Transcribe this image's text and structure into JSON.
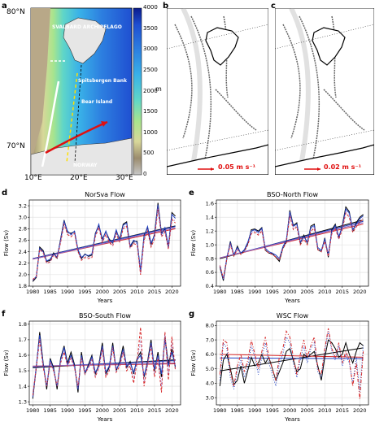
{
  "panels": {
    "a": "a",
    "b": "b",
    "c": "c",
    "d": "d",
    "e": "e",
    "f": "f",
    "g": "g"
  },
  "map": {
    "lat_labels": [
      "80°N",
      "70°N"
    ],
    "lon_labels": [
      "10°E",
      "20°E",
      "30°E"
    ],
    "places": [
      "SVALBARD ARCHIPELAGO",
      "Spitsbergen Bank",
      "Bear Island",
      "NORWAY"
    ],
    "colorbar": {
      "ticks": [
        "4000",
        "3500",
        "3000",
        "2500",
        "2000",
        "1500",
        "1000",
        "500",
        "0"
      ],
      "unit": "m",
      "colors": [
        "#0b1c8c",
        "#1f4fd1",
        "#2d7fe0",
        "#39b1e8",
        "#5fd6c8",
        "#a9e48d",
        "#d8d79a",
        "#c9b98c",
        "#9b8c6e",
        "#c8c8c8"
      ]
    },
    "scale_b": "0.05 m s⁻¹",
    "scale_c": "0.02 m s⁻¹"
  },
  "chart_data": [
    {
      "type": "line",
      "title": "NorSva Flow",
      "xlabel": "Years",
      "ylabel": "Flow (Sv)",
      "xlim": [
        1979,
        2022.5
      ],
      "ylim": [
        1.8,
        3.3
      ],
      "xticks": [
        1980,
        1985,
        1990,
        1995,
        2000,
        2005,
        2010,
        2015,
        2020
      ],
      "yticks": [
        1.8,
        2.0,
        2.2,
        2.4,
        2.6,
        2.8,
        3.0,
        3.2
      ],
      "x": [
        1980,
        1981,
        1982,
        1983,
        1984,
        1985,
        1986,
        1987,
        1988,
        1989,
        1990,
        1991,
        1992,
        1993,
        1994,
        1995,
        1996,
        1997,
        1998,
        1999,
        2000,
        2001,
        2002,
        2003,
        2004,
        2005,
        2006,
        2007,
        2008,
        2009,
        2010,
        2011,
        2012,
        2013,
        2014,
        2015,
        2016,
        2017,
        2018,
        2019,
        2020,
        2021
      ],
      "series": [
        {
          "color": "#000000",
          "dash": "",
          "values": [
            1.88,
            1.95,
            2.48,
            2.42,
            2.23,
            2.25,
            2.38,
            2.29,
            2.62,
            2.95,
            2.74,
            2.72,
            2.75,
            2.42,
            2.28,
            2.36,
            2.32,
            2.34,
            2.72,
            2.86,
            2.62,
            2.75,
            2.62,
            2.55,
            2.76,
            2.62,
            2.88,
            2.92,
            2.48,
            2.58,
            2.58,
            2.05,
            2.68,
            2.82,
            2.52,
            2.7,
            3.25,
            2.72,
            2.8,
            2.48,
            3.08,
            3.02
          ]
        },
        {
          "color": "#1f3fbf",
          "dash": "",
          "values": [
            1.9,
            1.97,
            2.46,
            2.4,
            2.24,
            2.27,
            2.36,
            2.31,
            2.6,
            2.93,
            2.76,
            2.7,
            2.76,
            2.44,
            2.3,
            2.35,
            2.33,
            2.36,
            2.7,
            2.88,
            2.6,
            2.76,
            2.6,
            2.56,
            2.78,
            2.6,
            2.86,
            2.9,
            2.5,
            2.6,
            2.56,
            2.08,
            2.66,
            2.84,
            2.55,
            2.68,
            3.22,
            2.7,
            2.82,
            2.5,
            3.05,
            2.98
          ]
        },
        {
          "color": "#d62728",
          "dash": "3,2",
          "values": [
            1.92,
            1.96,
            2.44,
            2.38,
            2.2,
            2.22,
            2.34,
            2.28,
            2.56,
            2.88,
            2.7,
            2.66,
            2.72,
            2.4,
            2.25,
            2.3,
            2.28,
            2.3,
            2.66,
            2.82,
            2.56,
            2.7,
            2.56,
            2.5,
            2.72,
            2.56,
            2.8,
            2.84,
            2.46,
            2.54,
            2.52,
            2.0,
            2.6,
            2.76,
            2.48,
            2.62,
            3.15,
            2.66,
            2.74,
            2.44,
            2.96,
            2.9
          ]
        },
        {
          "color": "#9467bd",
          "dash": "1,2",
          "values": [
            1.9,
            1.96,
            2.45,
            2.39,
            2.21,
            2.23,
            2.35,
            2.29,
            2.58,
            2.9,
            2.72,
            2.68,
            2.73,
            2.41,
            2.26,
            2.32,
            2.3,
            2.32,
            2.68,
            2.84,
            2.58,
            2.72,
            2.58,
            2.52,
            2.74,
            2.58,
            2.82,
            2.86,
            2.47,
            2.56,
            2.54,
            2.02,
            2.62,
            2.78,
            2.5,
            2.65,
            3.18,
            2.68,
            2.76,
            2.46,
            2.98,
            2.93
          ]
        }
      ],
      "trends": [
        {
          "color": "#000000",
          "start": 2.28,
          "end": 2.85
        },
        {
          "color": "#1f3fbf",
          "start": 2.28,
          "end": 2.84
        },
        {
          "color": "#d62728",
          "start": 2.27,
          "end": 2.8
        },
        {
          "color": "#9467bd",
          "start": 2.27,
          "end": 2.82
        }
      ]
    },
    {
      "type": "line",
      "title": "BSO-North Flow",
      "xlabel": "Years",
      "ylabel": "Flow (Sv)",
      "xlim": [
        1979,
        2022.5
      ],
      "ylim": [
        0.4,
        1.65
      ],
      "xticks": [
        1980,
        1985,
        1990,
        1995,
        2000,
        2005,
        2010,
        2015,
        2020
      ],
      "yticks": [
        0.4,
        0.6,
        0.8,
        1.0,
        1.2,
        1.4,
        1.6
      ],
      "x": [
        1980,
        1981,
        1982,
        1983,
        1984,
        1985,
        1986,
        1987,
        1988,
        1989,
        1990,
        1991,
        1992,
        1993,
        1994,
        1995,
        1996,
        1997,
        1998,
        1999,
        2000,
        2001,
        2002,
        2003,
        2004,
        2005,
        2006,
        2007,
        2008,
        2009,
        2010,
        2011,
        2012,
        2013,
        2014,
        2015,
        2016,
        2017,
        2018,
        2019,
        2020,
        2021
      ],
      "series": [
        {
          "color": "#000000",
          "dash": "",
          "values": [
            0.68,
            0.48,
            0.8,
            1.05,
            0.84,
            0.98,
            0.87,
            0.92,
            1.02,
            1.22,
            1.23,
            1.2,
            1.25,
            0.92,
            0.88,
            0.87,
            0.82,
            0.76,
            0.95,
            1.05,
            1.5,
            1.28,
            1.32,
            1.02,
            1.14,
            1.02,
            1.27,
            1.3,
            0.93,
            0.9,
            1.1,
            0.82,
            1.22,
            1.3,
            1.1,
            1.28,
            1.55,
            1.48,
            1.2,
            1.32,
            1.4,
            1.44
          ]
        },
        {
          "color": "#1f3fbf",
          "dash": "",
          "values": [
            0.7,
            0.5,
            0.82,
            1.03,
            0.86,
            0.96,
            0.88,
            0.93,
            1.04,
            1.2,
            1.22,
            1.18,
            1.24,
            0.95,
            0.9,
            0.88,
            0.85,
            0.8,
            0.97,
            1.07,
            1.48,
            1.27,
            1.3,
            1.04,
            1.12,
            1.04,
            1.25,
            1.28,
            0.96,
            0.92,
            1.08,
            0.86,
            1.2,
            1.28,
            1.12,
            1.26,
            1.52,
            1.46,
            1.22,
            1.3,
            1.38,
            1.42
          ]
        },
        {
          "color": "#d62728",
          "dash": "3,2",
          "values": [
            0.7,
            0.52,
            0.8,
            1.0,
            0.84,
            0.93,
            0.86,
            0.9,
            1.0,
            1.16,
            1.18,
            1.14,
            1.2,
            0.92,
            0.88,
            0.86,
            0.82,
            0.78,
            0.94,
            1.03,
            1.42,
            1.22,
            1.26,
            1.0,
            1.08,
            1.0,
            1.2,
            1.24,
            0.93,
            0.9,
            1.05,
            0.83,
            1.16,
            1.24,
            1.08,
            1.22,
            1.46,
            1.4,
            1.18,
            1.26,
            1.33,
            1.37
          ]
        },
        {
          "color": "#9467bd",
          "dash": "1,2",
          "values": [
            0.69,
            0.51,
            0.81,
            1.01,
            0.85,
            0.94,
            0.87,
            0.91,
            1.01,
            1.18,
            1.2,
            1.16,
            1.22,
            0.93,
            0.89,
            0.87,
            0.83,
            0.79,
            0.95,
            1.05,
            1.45,
            1.24,
            1.28,
            1.02,
            1.1,
            1.02,
            1.22,
            1.26,
            0.94,
            0.91,
            1.06,
            0.84,
            1.18,
            1.26,
            1.1,
            1.24,
            1.49,
            1.43,
            1.2,
            1.28,
            1.35,
            1.39
          ]
        }
      ],
      "trends": [
        {
          "color": "#000000",
          "start": 0.8,
          "end": 1.36
        },
        {
          "color": "#1f3fbf",
          "start": 0.81,
          "end": 1.34
        },
        {
          "color": "#d62728",
          "start": 0.81,
          "end": 1.3
        },
        {
          "color": "#9467bd",
          "start": 0.81,
          "end": 1.32
        }
      ]
    },
    {
      "type": "line",
      "title": "BSO-South Flow",
      "xlabel": "Years",
      "ylabel": "Flow (Sv)",
      "xlim": [
        1979,
        2022.5
      ],
      "ylim": [
        1.28,
        1.82
      ],
      "xticks": [
        1980,
        1985,
        1990,
        1995,
        2000,
        2005,
        2010,
        2015,
        2020
      ],
      "yticks": [
        1.3,
        1.4,
        1.5,
        1.6,
        1.7,
        1.8
      ],
      "x": [
        1980,
        1981,
        1982,
        1983,
        1984,
        1985,
        1986,
        1987,
        1988,
        1989,
        1990,
        1991,
        1992,
        1993,
        1994,
        1995,
        1996,
        1997,
        1998,
        1999,
        2000,
        2001,
        2002,
        2003,
        2004,
        2005,
        2006,
        2007,
        2008,
        2009,
        2010,
        2011,
        2012,
        2013,
        2014,
        2015,
        2016,
        2017,
        2018,
        2019,
        2020,
        2021
      ],
      "series": [
        {
          "color": "#000000",
          "dash": "",
          "values": [
            1.32,
            1.52,
            1.75,
            1.55,
            1.38,
            1.58,
            1.52,
            1.38,
            1.58,
            1.66,
            1.55,
            1.62,
            1.54,
            1.36,
            1.62,
            1.48,
            1.54,
            1.6,
            1.48,
            1.54,
            1.68,
            1.48,
            1.52,
            1.68,
            1.5,
            1.56,
            1.66,
            1.52,
            1.56,
            1.48,
            1.58,
            1.62,
            1.46,
            1.56,
            1.7,
            1.5,
            1.62,
            1.46,
            1.72,
            1.54,
            1.64,
            1.52
          ]
        },
        {
          "color": "#1f3fbf",
          "dash": "",
          "values": [
            1.33,
            1.53,
            1.73,
            1.54,
            1.4,
            1.57,
            1.51,
            1.4,
            1.57,
            1.65,
            1.54,
            1.6,
            1.53,
            1.38,
            1.6,
            1.49,
            1.53,
            1.59,
            1.49,
            1.53,
            1.66,
            1.49,
            1.53,
            1.66,
            1.51,
            1.55,
            1.64,
            1.53,
            1.55,
            1.49,
            1.57,
            1.6,
            1.47,
            1.55,
            1.68,
            1.51,
            1.6,
            1.48,
            1.7,
            1.53,
            1.62,
            1.53
          ]
        },
        {
          "color": "#d62728",
          "dash": "3,2",
          "values": [
            1.34,
            1.52,
            1.7,
            1.52,
            1.4,
            1.55,
            1.5,
            1.4,
            1.55,
            1.62,
            1.53,
            1.58,
            1.52,
            1.4,
            1.58,
            1.48,
            1.52,
            1.57,
            1.46,
            1.52,
            1.64,
            1.46,
            1.5,
            1.65,
            1.49,
            1.53,
            1.62,
            1.5,
            1.53,
            1.42,
            1.56,
            1.78,
            1.4,
            1.54,
            1.66,
            1.46,
            1.58,
            1.36,
            1.75,
            1.44,
            1.72,
            1.5
          ]
        },
        {
          "color": "#9467bd",
          "dash": "1,2",
          "values": [
            1.34,
            1.52,
            1.71,
            1.53,
            1.4,
            1.56,
            1.5,
            1.4,
            1.56,
            1.63,
            1.53,
            1.59,
            1.52,
            1.39,
            1.59,
            1.48,
            1.52,
            1.58,
            1.47,
            1.52,
            1.65,
            1.47,
            1.51,
            1.65,
            1.5,
            1.54,
            1.63,
            1.51,
            1.54,
            1.45,
            1.56,
            1.7,
            1.43,
            1.54,
            1.67,
            1.48,
            1.59,
            1.4,
            1.73,
            1.48,
            1.68,
            1.51
          ]
        }
      ],
      "trends": [
        {
          "color": "#000000",
          "start": 1.52,
          "end": 1.57
        },
        {
          "color": "#1f3fbf",
          "start": 1.525,
          "end": 1.565
        },
        {
          "color": "#d62728",
          "start": 1.53,
          "end": 1.545
        },
        {
          "color": "#9467bd",
          "start": 1.53,
          "end": 1.55
        }
      ]
    },
    {
      "type": "line",
      "title": "WSC Flow",
      "xlabel": "Years",
      "ylabel": "Flow (Sv)",
      "xlim": [
        1979,
        2022.5
      ],
      "ylim": [
        2.5,
        8.3
      ],
      "xticks": [
        1980,
        1985,
        1990,
        1995,
        2000,
        2005,
        2010,
        2015,
        2020
      ],
      "yticks": [
        3.0,
        4.0,
        5.0,
        6.0,
        7.0,
        8.0
      ],
      "x": [
        1980,
        1981,
        1982,
        1983,
        1984,
        1985,
        1986,
        1987,
        1988,
        1989,
        1990,
        1991,
        1992,
        1993,
        1994,
        1995,
        1996,
        1997,
        1998,
        1999,
        2000,
        2001,
        2002,
        2003,
        2004,
        2005,
        2006,
        2007,
        2008,
        2009,
        2010,
        2011,
        2012,
        2013,
        2014,
        2015,
        2016,
        2017,
        2018,
        2019,
        2020,
        2021
      ],
      "series": [
        {
          "color": "#000000",
          "dash": "",
          "values": [
            3.8,
            5.6,
            6.0,
            5.0,
            3.9,
            4.2,
            5.2,
            4.0,
            4.9,
            5.8,
            5.2,
            5.4,
            6.0,
            5.4,
            5.8,
            5.0,
            4.2,
            4.8,
            5.4,
            6.2,
            6.4,
            5.6,
            4.8,
            5.0,
            6.0,
            5.8,
            6.0,
            6.2,
            5.2,
            4.2,
            5.8,
            7.0,
            6.8,
            6.4,
            5.8,
            6.0,
            6.8,
            6.0,
            5.4,
            6.2,
            6.8,
            6.6
          ]
        },
        {
          "color": "#1f3fbf",
          "dash": "1,2",
          "values": [
            4.2,
            6.8,
            6.4,
            4.4,
            3.6,
            4.8,
            5.6,
            4.4,
            5.2,
            6.6,
            5.8,
            4.6,
            5.8,
            6.8,
            5.4,
            4.6,
            3.8,
            5.4,
            6.0,
            7.2,
            6.8,
            5.4,
            4.4,
            5.6,
            6.6,
            5.4,
            6.4,
            6.8,
            4.8,
            4.4,
            6.2,
            7.6,
            6.2,
            5.6,
            6.6,
            5.2,
            6.0,
            5.4,
            4.0,
            5.8,
            3.4,
            6.6
          ]
        },
        {
          "color": "#d62728",
          "dash": "4,2,1,2",
          "values": [
            4.6,
            7.0,
            6.8,
            4.8,
            3.8,
            5.2,
            6.0,
            4.8,
            5.6,
            7.0,
            6.0,
            5.0,
            6.2,
            7.2,
            5.8,
            5.0,
            4.2,
            5.8,
            6.4,
            7.6,
            7.2,
            5.8,
            4.6,
            6.0,
            7.0,
            5.8,
            6.6,
            7.2,
            5.0,
            4.6,
            6.4,
            7.8,
            6.4,
            5.8,
            6.8,
            5.4,
            6.2,
            5.6,
            3.8,
            5.4,
            2.9,
            6.2
          ]
        }
      ],
      "trends": [
        {
          "color": "#000000",
          "start": 4.85,
          "end": 6.45
        },
        {
          "color": "#1f3fbf",
          "start": 5.75,
          "end": 5.7
        },
        {
          "color": "#d62728",
          "start": 6.0,
          "end": 5.8
        }
      ]
    }
  ]
}
